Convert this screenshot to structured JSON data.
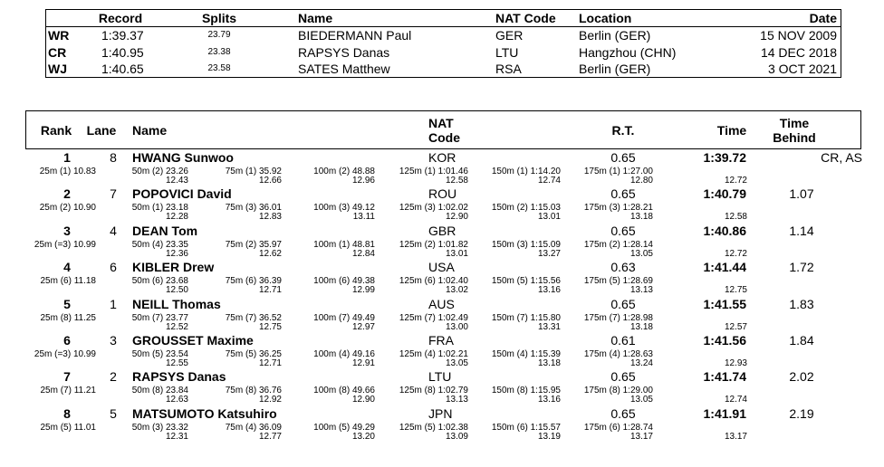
{
  "records": {
    "header": [
      "Record",
      "Splits",
      "Name",
      "NAT Code",
      "Location",
      "Date"
    ],
    "rows": [
      [
        "WR",
        "1:39.37",
        "23.79",
        "BIEDERMANN Paul",
        "GER",
        "Berlin (GER)",
        "15 NOV 2009"
      ],
      [
        "CR",
        "1:40.95",
        "23.38",
        "RAPSYS Danas",
        "LTU",
        "Hangzhou (CHN)",
        "14 DEC 2018"
      ],
      [
        "WJ",
        "1:40.65",
        "23.58",
        "SATES Matthew",
        "RSA",
        "Berlin (GER)",
        "3 OCT 2021"
      ]
    ]
  },
  "results": {
    "header": [
      "Rank",
      "Lane",
      "Name",
      "NAT Code",
      "R.T.",
      "Time",
      "Time Behind"
    ],
    "rows": [
      {
        "rank": "1",
        "lane": "8",
        "name": "HWANG Sunwoo",
        "nat": "KOR",
        "rt": "0.65",
        "time": "1:39.72",
        "note": "CR, AS",
        "splits": [
          {
            "at": "25m (1) 10.83"
          },
          {
            "at": "50m (2) 23.26",
            "lap": "12.43"
          },
          {
            "at": "75m (1) 35.92",
            "lap": "12.66"
          },
          {
            "at": "100m (2) 48.88",
            "lap": "12.96"
          },
          {
            "at": "125m (1) 1:01.46",
            "lap": "12.58"
          },
          {
            "at": "150m (1) 1:14.20",
            "lap": "12.74"
          },
          {
            "at": "175m (1) 1:27.00",
            "lap": "12.80"
          }
        ],
        "final_lap": "12.72"
      },
      {
        "rank": "2",
        "lane": "7",
        "name": "POPOVICI David",
        "nat": "ROU",
        "rt": "0.65",
        "time": "1:40.79",
        "behind": "1.07",
        "splits": [
          {
            "at": "25m (2) 10.90"
          },
          {
            "at": "50m (1) 23.18",
            "lap": "12.28"
          },
          {
            "at": "75m (3) 36.01",
            "lap": "12.83"
          },
          {
            "at": "100m (3) 49.12",
            "lap": "13.11"
          },
          {
            "at": "125m (3) 1:02.02",
            "lap": "12.90"
          },
          {
            "at": "150m (2) 1:15.03",
            "lap": "13.01"
          },
          {
            "at": "175m (3) 1:28.21",
            "lap": "13.18"
          }
        ],
        "final_lap": "12.58"
      },
      {
        "rank": "3",
        "lane": "4",
        "name": "DEAN Tom",
        "nat": "GBR",
        "rt": "0.65",
        "time": "1:40.86",
        "behind": "1.14",
        "splits": [
          {
            "at": "25m (=3) 10.99"
          },
          {
            "at": "50m (4) 23.35",
            "lap": "12.36"
          },
          {
            "at": "75m (2) 35.97",
            "lap": "12.62"
          },
          {
            "at": "100m (1) 48.81",
            "lap": "12.84"
          },
          {
            "at": "125m (2) 1:01.82",
            "lap": "13.01"
          },
          {
            "at": "150m (3) 1:15.09",
            "lap": "13.27"
          },
          {
            "at": "175m (2) 1:28.14",
            "lap": "13.05"
          }
        ],
        "final_lap": "12.72"
      },
      {
        "rank": "4",
        "lane": "6",
        "name": "KIBLER Drew",
        "nat": "USA",
        "rt": "0.63",
        "time": "1:41.44",
        "behind": "1.72",
        "splits": [
          {
            "at": "25m (6) 11.18"
          },
          {
            "at": "50m (6) 23.68",
            "lap": "12.50"
          },
          {
            "at": "75m (6) 36.39",
            "lap": "12.71"
          },
          {
            "at": "100m (6) 49.38",
            "lap": "12.99"
          },
          {
            "at": "125m (6) 1:02.40",
            "lap": "13.02"
          },
          {
            "at": "150m (5) 1:15.56",
            "lap": "13.16"
          },
          {
            "at": "175m (5) 1:28.69",
            "lap": "13.13"
          }
        ],
        "final_lap": "12.75"
      },
      {
        "rank": "5",
        "lane": "1",
        "name": "NEILL Thomas",
        "nat": "AUS",
        "rt": "0.65",
        "time": "1:41.55",
        "behind": "1.83",
        "splits": [
          {
            "at": "25m (8) 11.25"
          },
          {
            "at": "50m (7) 23.77",
            "lap": "12.52"
          },
          {
            "at": "75m (7) 36.52",
            "lap": "12.75"
          },
          {
            "at": "100m (7) 49.49",
            "lap": "12.97"
          },
          {
            "at": "125m (7) 1:02.49",
            "lap": "13.00"
          },
          {
            "at": "150m (7) 1:15.80",
            "lap": "13.31"
          },
          {
            "at": "175m (7) 1:28.98",
            "lap": "13.18"
          }
        ],
        "final_lap": "12.57"
      },
      {
        "rank": "6",
        "lane": "3",
        "name": "GROUSSET Maxime",
        "nat": "FRA",
        "rt": "0.61",
        "time": "1:41.56",
        "behind": "1.84",
        "splits": [
          {
            "at": "25m (=3) 10.99"
          },
          {
            "at": "50m (5) 23.54",
            "lap": "12.55"
          },
          {
            "at": "75m (5) 36.25",
            "lap": "12.71"
          },
          {
            "at": "100m (4) 49.16",
            "lap": "12.91"
          },
          {
            "at": "125m (4) 1:02.21",
            "lap": "13.05"
          },
          {
            "at": "150m (4) 1:15.39",
            "lap": "13.18"
          },
          {
            "at": "175m (4) 1:28.63",
            "lap": "13.24"
          }
        ],
        "final_lap": "12.93"
      },
      {
        "rank": "7",
        "lane": "2",
        "name": "RAPSYS Danas",
        "nat": "LTU",
        "rt": "0.65",
        "time": "1:41.74",
        "behind": "2.02",
        "splits": [
          {
            "at": "25m (7) 11.21"
          },
          {
            "at": "50m (8) 23.84",
            "lap": "12.63"
          },
          {
            "at": "75m (8) 36.76",
            "lap": "12.92"
          },
          {
            "at": "100m (8) 49.66",
            "lap": "12.90"
          },
          {
            "at": "125m (8) 1:02.79",
            "lap": "13.13"
          },
          {
            "at": "150m (8) 1:15.95",
            "lap": "13.16"
          },
          {
            "at": "175m (8) 1:29.00",
            "lap": "13.05"
          }
        ],
        "final_lap": "12.74"
      },
      {
        "rank": "8",
        "lane": "5",
        "name": "MATSUMOTO Katsuhiro",
        "nat": "JPN",
        "rt": "0.65",
        "time": "1:41.91",
        "behind": "2.19",
        "splits": [
          {
            "at": "25m (5) 11.01"
          },
          {
            "at": "50m (3) 23.32",
            "lap": "12.31"
          },
          {
            "at": "75m (4) 36.09",
            "lap": "12.77"
          },
          {
            "at": "100m (5) 49.29",
            "lap": "13.20"
          },
          {
            "at": "125m (5) 1:02.38",
            "lap": "13.09"
          },
          {
            "at": "150m (6) 1:15.57",
            "lap": "13.19"
          },
          {
            "at": "175m (6) 1:28.74",
            "lap": "13.17"
          }
        ],
        "final_lap": "13.17"
      }
    ]
  }
}
